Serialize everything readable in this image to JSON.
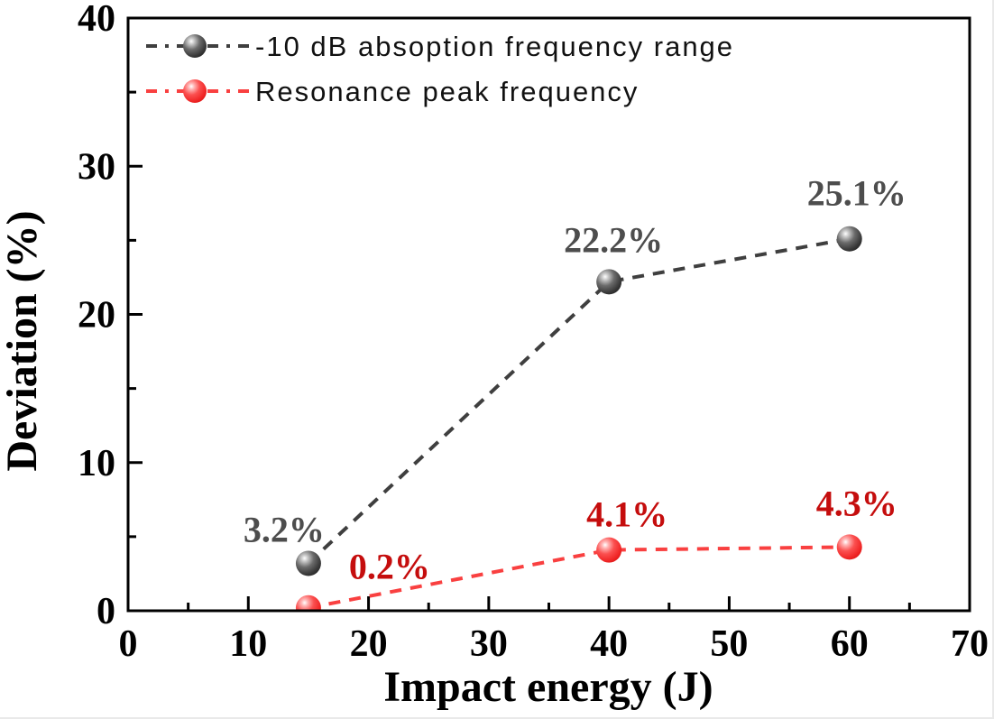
{
  "figure": {
    "background": "#ffffff",
    "frame_color": "#000000"
  },
  "chart_data": {
    "type": "line",
    "title": "",
    "xlabel": "Impact energy (J)",
    "ylabel": "Deviation (%)",
    "xlim": [
      0,
      70
    ],
    "ylim": [
      0,
      40
    ],
    "xticks": [
      0,
      10,
      20,
      30,
      40,
      50,
      60,
      70
    ],
    "yticks": [
      0,
      10,
      20,
      30,
      40
    ],
    "minor_tick_step": 5,
    "grid": false,
    "legend_position": "top-left",
    "line_style": "dashed",
    "marker": "sphere",
    "series": [
      {
        "name": "-10 dB absoption frequency range",
        "color": "#3f3f3f",
        "label_color": "#4d4d4d",
        "gradient": "gradGray",
        "x": [
          15,
          40,
          60
        ],
        "y": [
          3.2,
          22.2,
          25.1
        ],
        "labels": [
          "3.2%",
          "22.2%",
          "25.1%"
        ],
        "label_offsets": [
          [
            -27,
            -24
          ],
          [
            5,
            -33
          ],
          [
            8,
            -37
          ]
        ]
      },
      {
        "name": "Resonance peak frequency",
        "color": "#f94040",
        "label_color": "#c50d0d",
        "gradient": "gradRed",
        "x": [
          15,
          40,
          60
        ],
        "y": [
          0.2,
          4.1,
          4.3
        ],
        "labels": [
          "0.2%",
          "4.1%",
          "4.3%"
        ],
        "label_offsets": [
          [
            90,
            -32
          ],
          [
            20,
            -26
          ],
          [
            8,
            -35
          ]
        ]
      }
    ]
  }
}
